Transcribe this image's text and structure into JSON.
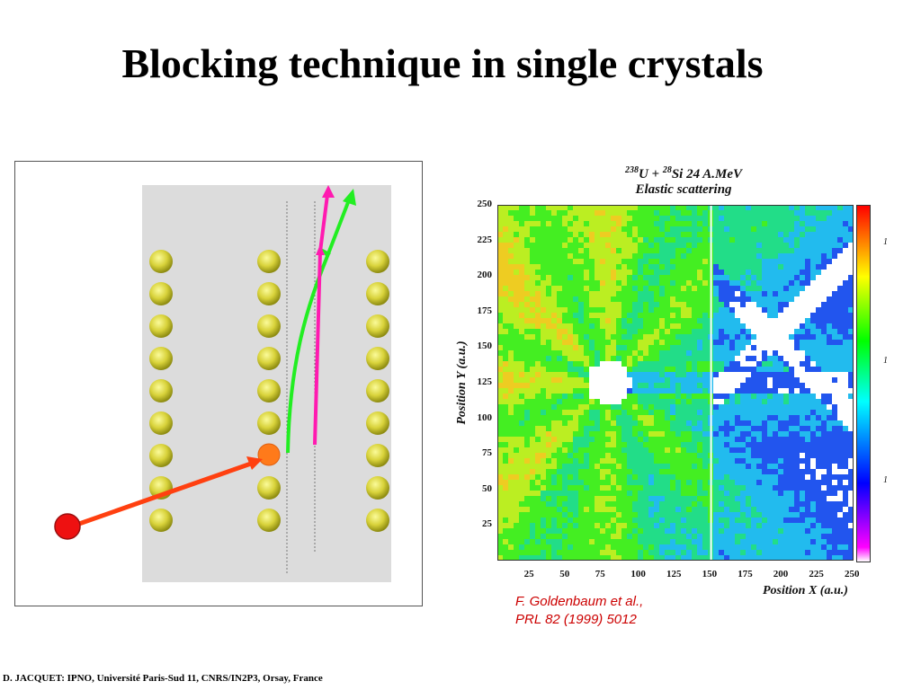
{
  "slide": {
    "title": "Blocking technique in single crystals",
    "footer": "D. JACQUET:   IPNO, Université Paris-Sud 11, CNRS/IN2P3, Orsay, France"
  },
  "plot": {
    "title_line1_parts": [
      "238",
      "U + ",
      "28",
      "Si   24 A.MeV"
    ],
    "title_line2": "Elastic scattering",
    "xlabel": "Position X (a.u.)",
    "ylabel": "Position Y (a.u.)",
    "x_ticks": [
      "25",
      "50",
      "75",
      "100",
      "125",
      "150",
      "175",
      "200",
      "225",
      "250"
    ],
    "y_ticks": [
      "25",
      "50",
      "75",
      "100",
      "125",
      "150",
      "175",
      "200",
      "225",
      "250"
    ],
    "colorbar_labels": [
      "1",
      "1",
      "1"
    ]
  },
  "citation": {
    "line1": "F. Goldenbaum et al.,",
    "line2": "PRL 82 (1999) 5012"
  },
  "chart_data": {
    "type": "heatmap",
    "xlabel": "Position X (a.u.)",
    "ylabel": "Position Y (a.u.)",
    "xlim": [
      0,
      250
    ],
    "ylim": [
      0,
      250
    ],
    "x_ticks": [
      25,
      50,
      75,
      100,
      125,
      150,
      175,
      200,
      225,
      250
    ],
    "y_ticks": [
      25,
      50,
      75,
      100,
      125,
      150,
      175,
      200,
      225,
      250
    ],
    "blocking_center": [
      78,
      125
    ],
    "colorscale": [
      "#ff00ff",
      "#0000ff",
      "#00ffff",
      "#00ff00",
      "#ffff00",
      "#ff0000"
    ]
  }
}
